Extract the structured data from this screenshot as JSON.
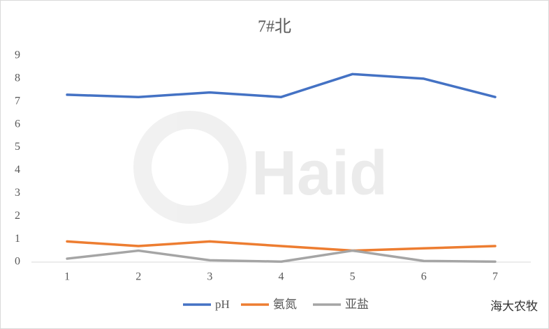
{
  "chart_data": {
    "type": "line",
    "title": "7#北",
    "categories": [
      "1",
      "2",
      "3",
      "4",
      "5",
      "6",
      "7"
    ],
    "series": [
      {
        "name": "pH",
        "color": "#4472c4",
        "values": [
          7.3,
          7.2,
          7.4,
          7.2,
          8.2,
          8.0,
          7.2
        ]
      },
      {
        "name": "氨氮",
        "color": "#ed7d31",
        "values": [
          0.9,
          0.7,
          0.9,
          0.7,
          0.5,
          0.6,
          0.7
        ]
      },
      {
        "name": "亚盐",
        "color": "#a5a5a5",
        "values": [
          0.15,
          0.5,
          0.08,
          0.02,
          0.5,
          0.05,
          0.02
        ]
      }
    ],
    "ylim": [
      0,
      9
    ],
    "yticks": [
      0,
      1,
      2,
      3,
      4,
      5,
      6,
      7,
      8,
      9
    ],
    "grid": false,
    "legend": "bottom",
    "logo_text": "Haid",
    "watermark": "海大农牧"
  }
}
